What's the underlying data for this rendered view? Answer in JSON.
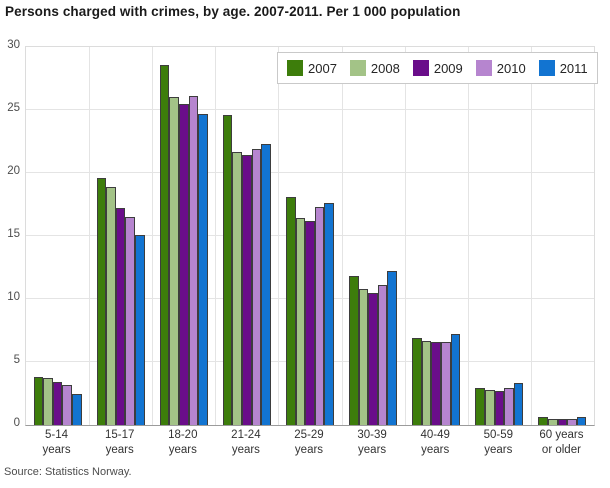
{
  "title": "Persons charged with crimes, by age. 2007-2011. Per 1 000 population",
  "source": "Source: Statistics Norway.",
  "chart_data": {
    "type": "bar",
    "title": "Persons charged with crimes, by age. 2007-2011. Per 1 000 population",
    "xlabel": "",
    "ylabel": "",
    "ylim": [
      0,
      30
    ],
    "y_ticks": [
      0,
      5,
      10,
      15,
      20,
      25,
      30
    ],
    "grid": true,
    "legend_position": "top-right",
    "categories": [
      "5-14\nyears",
      "15-17\nyears",
      "18-20\nyears",
      "21-24\nyears",
      "25-29\nyears",
      "30-39\nyears",
      "40-49\nyears",
      "50-59\nyears",
      "60 years\nor older"
    ],
    "series": [
      {
        "name": "2007",
        "color": "#3d7d0b",
        "values": [
          3.8,
          19.6,
          28.6,
          24.6,
          18.1,
          11.8,
          6.9,
          2.9,
          0.6
        ]
      },
      {
        "name": "2008",
        "color": "#a3c387",
        "values": [
          3.7,
          18.9,
          26.0,
          21.7,
          16.4,
          10.8,
          6.7,
          2.8,
          0.5
        ]
      },
      {
        "name": "2009",
        "color": "#6a0d8a",
        "values": [
          3.4,
          17.2,
          25.5,
          21.4,
          16.2,
          10.5,
          6.6,
          2.7,
          0.5
        ]
      },
      {
        "name": "2010",
        "color": "#b685cf",
        "values": [
          3.2,
          16.5,
          26.1,
          21.9,
          17.3,
          11.1,
          6.6,
          2.9,
          0.5
        ]
      },
      {
        "name": "2011",
        "color": "#1274d1",
        "values": [
          2.5,
          15.1,
          24.7,
          22.3,
          17.6,
          12.2,
          7.2,
          3.3,
          0.6
        ]
      }
    ]
  },
  "colors": {
    "grid": "#e4e4e4",
    "axis": "#9b9b9b",
    "bar_border": "#3d3d3d"
  }
}
